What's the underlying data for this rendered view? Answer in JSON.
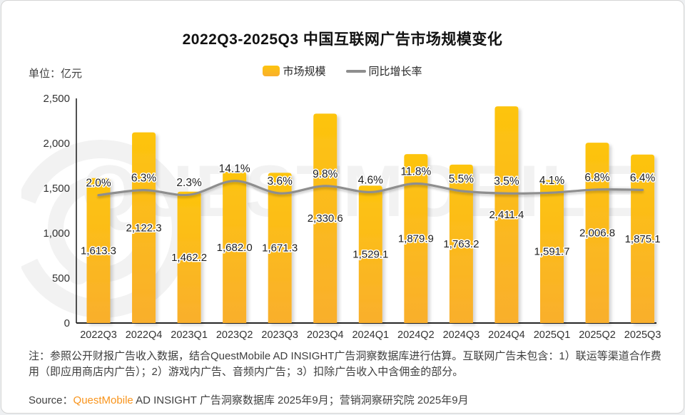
{
  "title": "2022Q3-2025Q3 中国互联网广告市场规模变化",
  "unit_label": "单位：亿元",
  "legend": {
    "bar_label": "市场规模",
    "line_label": "同比增长率"
  },
  "watermark_text": "QUESTMOBILE",
  "note": "注：参照公开财报广告收入数据，结合QuestMobile AD INSIGHT广告洞察数据库进行估算。互联网广告未包含：1）联运等渠道合作费用（即应用商店内广告）；2）游戏内广告、音频内广告；3）扣除广告收入中含佣金的部分。",
  "source": {
    "prefix": "Source：",
    "brand": "QuestMobile",
    "suffix": " AD INSIGHT 广告洞察数据库 2025年9月；营销洞察研究院 2025年9月"
  },
  "colors": {
    "bar_top": "#FDC40E",
    "bar_bottom": "#F9AF2D",
    "line": "#8E8E8E",
    "axis": "#262626",
    "label_text": "#1F1F1F",
    "tick_text": "#333333",
    "brand_orange": "#F8941C",
    "watermark": "#F2F2F2"
  },
  "chart_data": {
    "type": "bar",
    "subtype": "bar+line-combo",
    "title": "2022Q3-2025Q3 中国互联网广告市场规模变化",
    "xlabel": "",
    "ylabel": "单位：亿元",
    "categories": [
      "2022Q3",
      "2022Q4",
      "2023Q1",
      "2023Q2",
      "2023Q3",
      "2023Q4",
      "2024Q1",
      "2024Q2",
      "2024Q3",
      "2024Q4",
      "2025Q1",
      "2025Q2",
      "2025Q3"
    ],
    "series": [
      {
        "name": "市场规模",
        "type": "bar",
        "values": [
          1613.3,
          2122.3,
          1462.2,
          1682.0,
          1671.3,
          2330.6,
          1529.1,
          1879.9,
          1763.2,
          2411.4,
          1591.7,
          2006.8,
          1875.1
        ],
        "labels": [
          "1,613.3",
          "2,122.3",
          "1,462.2",
          "1,682.0",
          "1,671.3",
          "2,330.6",
          "1,529.1",
          "1,879.9",
          "1,763.2",
          "2,411.4",
          "1,591.7",
          "2,006.8",
          "1,875.1"
        ]
      },
      {
        "name": "同比增长率",
        "type": "line",
        "values": [
          2.0,
          6.3,
          2.3,
          14.1,
          3.6,
          9.8,
          4.6,
          11.8,
          5.5,
          3.5,
          4.1,
          6.8,
          6.4
        ],
        "labels": [
          "2.0%",
          "6.3%",
          "2.3%",
          "14.1%",
          "3.6%",
          "9.8%",
          "4.6%",
          "11.8%",
          "5.5%",
          "3.5%",
          "4.1%",
          "6.8%",
          "6.4%"
        ]
      }
    ],
    "y_axis": {
      "min": 0,
      "max": 2500,
      "step": 500,
      "tick_labels": [
        "0",
        "500",
        "1,000",
        "1,500",
        "2,000",
        "2,500"
      ]
    },
    "grid": false,
    "legend_position": "top-center",
    "value_labels_position": "inside-bar-middle",
    "pct_labels_position": "above-line-point"
  }
}
